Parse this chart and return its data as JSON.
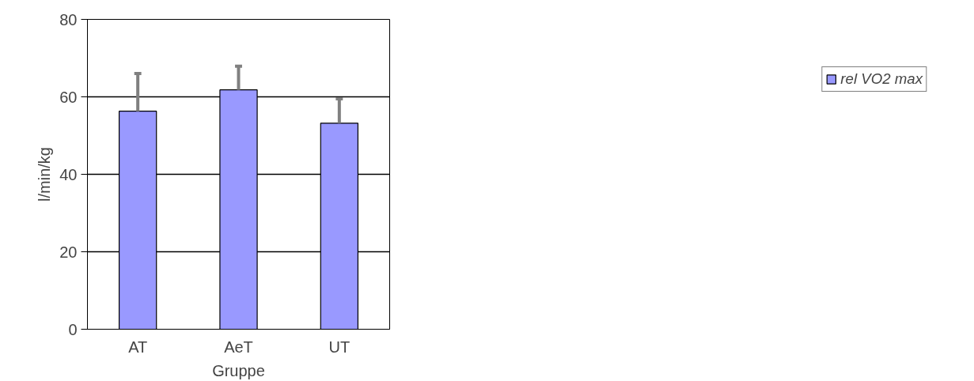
{
  "chart_data": {
    "type": "bar",
    "xlabel": "Gruppe",
    "ylabel": "l/min/kg",
    "categories": [
      "AT",
      "AeT",
      "UT"
    ],
    "series": [
      {
        "name": "rel VO2 max",
        "color": "#9999ff",
        "values": [
          56.3,
          61.8,
          53.2
        ],
        "errors": [
          [
            56.3,
            66.0
          ],
          [
            61.8,
            67.9
          ],
          [
            53.2,
            59.5
          ]
        ]
      }
    ],
    "ylim": [
      0,
      80
    ],
    "yticks": [
      0,
      20,
      40,
      60,
      80
    ],
    "grid": "y",
    "legend": "right"
  }
}
